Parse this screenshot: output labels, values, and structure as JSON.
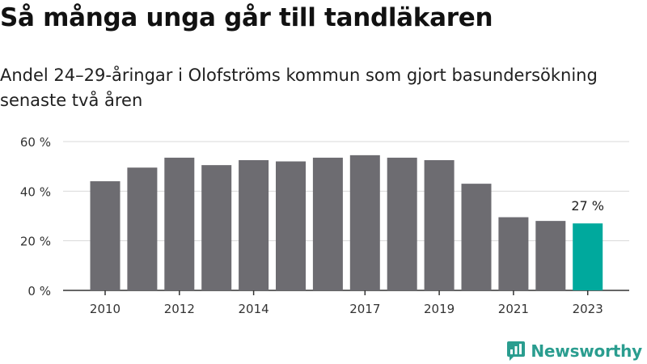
{
  "title": "Så många unga går till tandläkaren",
  "subtitle": "Andel 24–29-åringar i Olofströms kommun som gjort basundersökning senaste två åren",
  "brand": "Newsworthy",
  "colors": {
    "bar": "#6d6c71",
    "highlight": "#00a99d",
    "grid": "#d9d9d9",
    "axis": "#333333",
    "text": "#333333"
  },
  "chart_data": {
    "type": "bar",
    "x": [
      2010,
      2011,
      2012,
      2013,
      2014,
      2015,
      2016,
      2017,
      2018,
      2019,
      2020,
      2021,
      2022,
      2023
    ],
    "values": [
      44,
      49.5,
      53.5,
      50.5,
      52.5,
      52,
      53.5,
      54.5,
      53.5,
      52.5,
      43,
      29.5,
      28,
      27
    ],
    "x_tick_labels": [
      "2010",
      "2012",
      "2014",
      "2017",
      "2019",
      "2021",
      "2023"
    ],
    "y_ticks": [
      0,
      20,
      40,
      60
    ],
    "y_tick_labels": [
      "0 %",
      "20 %",
      "40 %",
      "60 %"
    ],
    "ylim": [
      0,
      60
    ],
    "highlight_index": 13,
    "data_labels": [
      {
        "index": 13,
        "text": "27 %"
      }
    ],
    "grid": true
  }
}
